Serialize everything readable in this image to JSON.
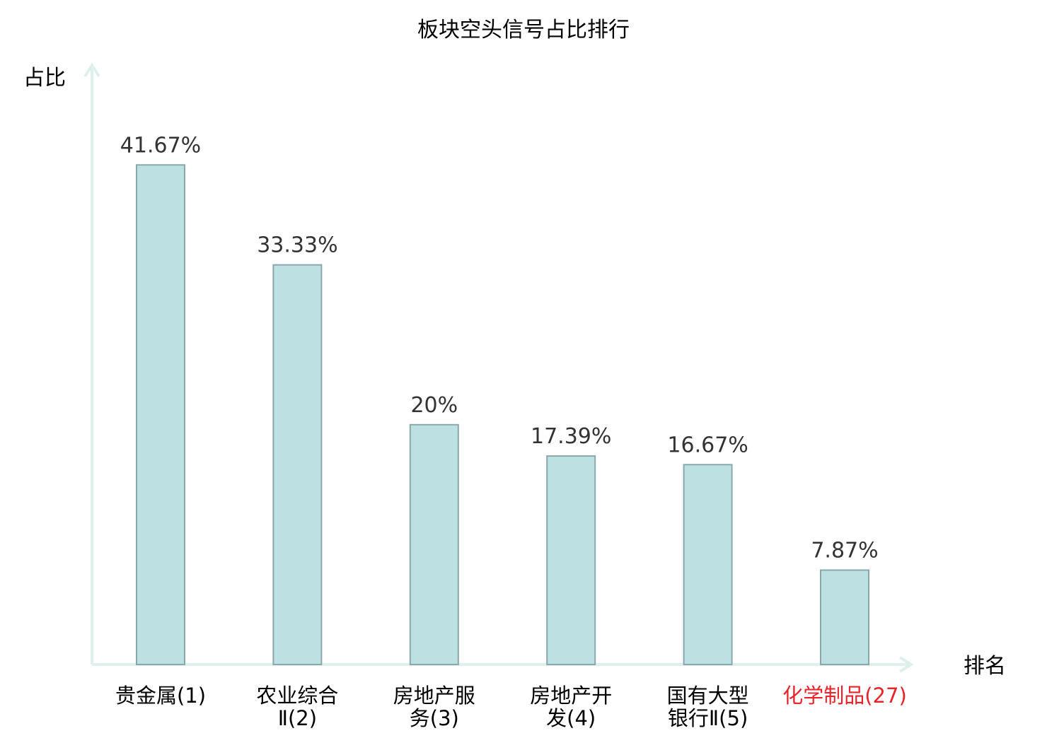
{
  "chart_data": {
    "type": "bar",
    "title": "板块空头信号占比排行",
    "ylabel": "占比",
    "xlabel": "排名",
    "categories": [
      {
        "name": "贵金属",
        "rank": "(1)",
        "lines": [
          "贵金属(1)"
        ]
      },
      {
        "name": "农业综合Ⅱ",
        "rank": "(2)",
        "lines": [
          "农业综合",
          "Ⅱ(2)"
        ]
      },
      {
        "name": "房地产服务",
        "rank": "(3)",
        "lines": [
          "房地产服",
          "务(3)"
        ]
      },
      {
        "name": "房地产开发",
        "rank": "(4)",
        "lines": [
          "房地产开",
          "发(4)"
        ]
      },
      {
        "name": "国有大型银行Ⅱ",
        "rank": "(5)",
        "lines": [
          "国有大型",
          "银行Ⅱ(5)"
        ]
      },
      {
        "name": "化学制品",
        "rank": "(27)",
        "lines": [
          "化学制品(27)"
        ],
        "highlight": true
      }
    ],
    "values": [
      41.67,
      33.33,
      20,
      17.39,
      16.67,
      7.87
    ],
    "value_labels": [
      "41.67%",
      "33.33%",
      "20%",
      "17.39%",
      "16.67%",
      "7.87%"
    ],
    "unit": "%",
    "ylim": [
      0,
      50
    ],
    "grid": false,
    "legend": "none",
    "colors": {
      "bar_fill": "#bde0e3",
      "bar_stroke": "#8aa8ab",
      "axis": "#def0ee",
      "text": "#333333",
      "highlight_text": "#e8242a"
    }
  }
}
